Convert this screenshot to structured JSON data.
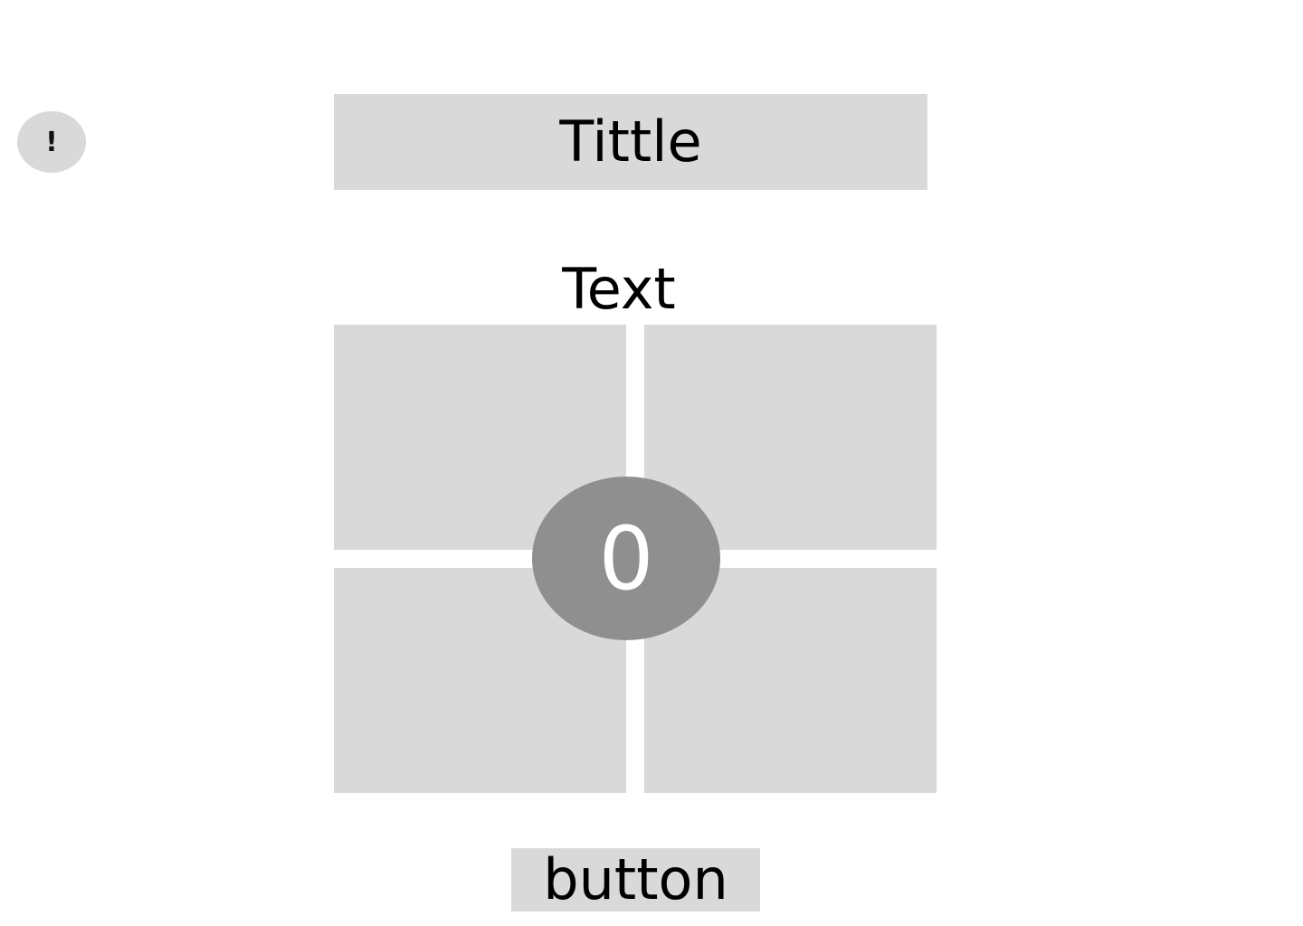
{
  "info_badge": {
    "label": "!",
    "icon": "exclamation-icon"
  },
  "header": {
    "title": "Tittle"
  },
  "main": {
    "text": "Text",
    "counter": "0",
    "tiles": [
      "",
      "",
      "",
      ""
    ]
  },
  "footer": {
    "button_label": "button"
  },
  "colors": {
    "panel": "#d9d9d9",
    "counter_bg": "#8f8f8f",
    "background": "#ffffff"
  }
}
